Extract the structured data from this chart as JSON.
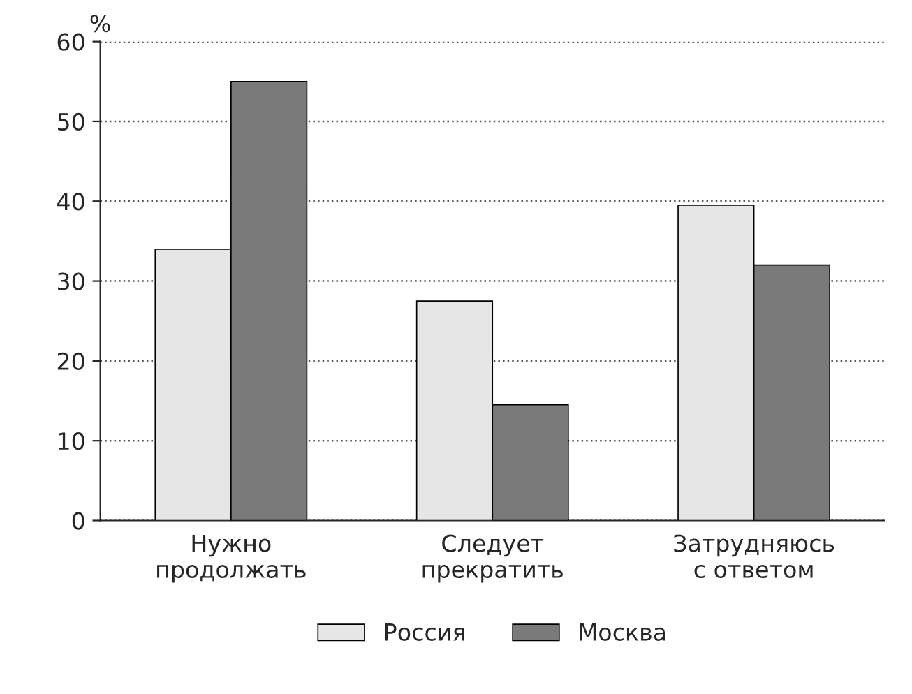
{
  "chart_data": {
    "type": "bar",
    "ylabel": "%",
    "categories": [
      "Нужно\nпродолжать",
      "Следует\nпрекратить",
      "Затрудняюсь\nс ответом"
    ],
    "series": [
      {
        "name": "Россия",
        "color": "#e6e6e6",
        "values": [
          34,
          27.5,
          39.5
        ]
      },
      {
        "name": "Москва",
        "color": "#7a7a7a",
        "values": [
          55,
          14.5,
          32
        ]
      }
    ],
    "ylim": [
      0,
      60
    ],
    "yticks": [
      0,
      10,
      20,
      30,
      40,
      50,
      60
    ],
    "grid": "y",
    "legend": "bottom"
  }
}
